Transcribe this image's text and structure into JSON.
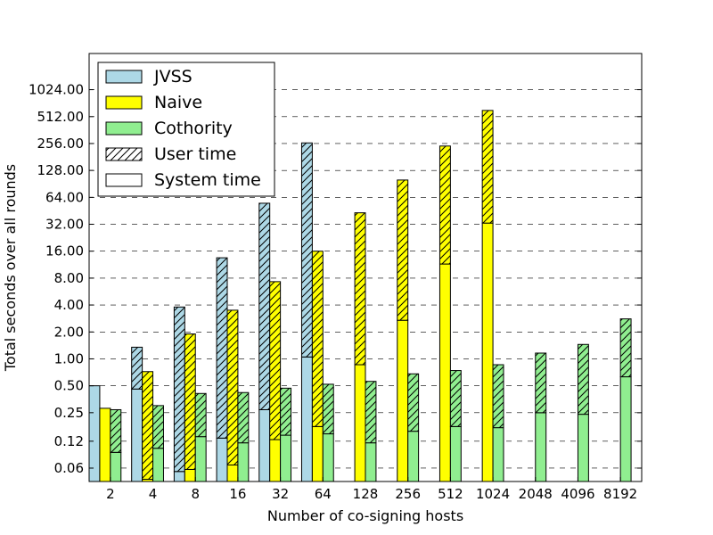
{
  "chart_data": {
    "type": "bar",
    "stacked": true,
    "y_scale": "log2",
    "xlabel": "Number of co-signing hosts",
    "ylabel": "Total seconds over all rounds",
    "categories": [
      "2",
      "4",
      "8",
      "16",
      "32",
      "64",
      "128",
      "256",
      "512",
      "1024",
      "2048",
      "4096",
      "8192"
    ],
    "yticks": [
      0.06,
      0.12,
      0.25,
      0.5,
      1.0,
      2.0,
      4.0,
      8.0,
      16.0,
      32.0,
      64.0,
      128.0,
      256.0,
      512.0,
      1024.0
    ],
    "ytick_labels": [
      "0.06",
      "0.12",
      "0.25",
      "0.50",
      "1.00",
      "2.00",
      "4.00",
      "8.00",
      "16.00",
      "32.00",
      "64.00",
      "128.00",
      "256.00",
      "512.00",
      "1024.00"
    ],
    "ylim": [
      0.0425,
      2600
    ],
    "grid": "y-dashed",
    "legend": {
      "placement": "top-left",
      "entries": [
        {
          "label": "JVSS",
          "kind": "color",
          "color": "#add8e6"
        },
        {
          "label": "Naive",
          "kind": "color",
          "color": "#ffff00"
        },
        {
          "label": "Cothority",
          "kind": "color",
          "color": "#90ee90"
        },
        {
          "label": "User time",
          "kind": "hatch"
        },
        {
          "label": "System time",
          "kind": "plain"
        }
      ]
    },
    "series": [
      {
        "name": "JVSS",
        "color": "#add8e6",
        "system_time": [
          0.5,
          0.46,
          0.055,
          0.13,
          0.27,
          1.05,
          null,
          null,
          null,
          null,
          null,
          null,
          null
        ],
        "total_time": [
          0.5,
          1.35,
          3.8,
          13.5,
          55,
          260,
          null,
          null,
          null,
          null,
          null,
          null,
          null
        ]
      },
      {
        "name": "Naive",
        "color": "#ffff00",
        "system_time": [
          0.28,
          0.045,
          0.058,
          0.065,
          0.125,
          0.175,
          0.86,
          2.7,
          11.5,
          33,
          null,
          null,
          null
        ],
        "total_time": [
          0.28,
          0.72,
          1.9,
          3.5,
          7.3,
          16,
          43,
          100,
          240,
          600,
          null,
          null,
          null
        ]
      },
      {
        "name": "Cothority",
        "color": "#90ee90",
        "system_time": [
          0.09,
          0.1,
          0.135,
          0.115,
          0.14,
          0.145,
          0.115,
          0.155,
          0.175,
          0.17,
          0.25,
          0.24,
          0.63
        ],
        "total_time": [
          0.27,
          0.3,
          0.41,
          0.42,
          0.47,
          0.52,
          0.56,
          0.68,
          0.74,
          0.86,
          1.16,
          1.45,
          2.8
        ]
      }
    ]
  }
}
